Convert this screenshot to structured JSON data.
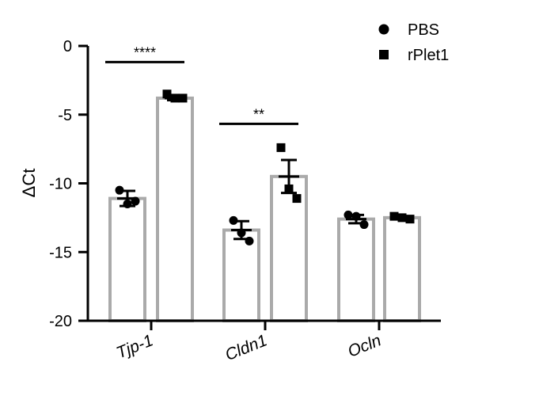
{
  "chart_data": {
    "type": "bar",
    "title": "",
    "xlabel": "",
    "ylabel": "ΔCt",
    "ylim": [
      -20,
      0
    ],
    "yticks": [
      0,
      -5,
      -10,
      -15,
      -20
    ],
    "ytick_labels": [
      "0",
      "-5",
      "-10",
      "-15",
      "-20"
    ],
    "categories": [
      "Tjp-1",
      "Cldn1",
      "Ocln"
    ],
    "grid": false,
    "legend_position": "top-right",
    "colors": {
      "bar_edge": "#aaaaaa",
      "bar_fill": "#ffffff",
      "marker": "#000000",
      "line": "#000000"
    },
    "series": [
      {
        "name": "PBS",
        "marker": "circle",
        "values": [
          -11.1,
          -13.4,
          -12.6
        ],
        "errors": [
          0.55,
          0.65,
          0.3
        ],
        "points": [
          [
            -10.5,
            -11.5,
            -11.3
          ],
          [
            -12.7,
            -13.6,
            -14.2
          ],
          [
            -12.3,
            -12.4,
            -13.0
          ]
        ]
      },
      {
        "name": "rPlet1",
        "marker": "square",
        "values": [
          -3.8,
          -9.5,
          -12.5
        ],
        "errors": [
          0.15,
          1.2,
          0.1
        ],
        "points": [
          [
            -3.5,
            -3.8,
            -3.8
          ],
          [
            -7.4,
            -10.4,
            -11.1
          ],
          [
            -12.4,
            -12.5,
            -12.6
          ]
        ]
      }
    ],
    "significance": [
      {
        "category_index": 0,
        "label": "****",
        "y": -1.0
      },
      {
        "category_index": 1,
        "label": "**",
        "y": -5.5
      }
    ]
  }
}
